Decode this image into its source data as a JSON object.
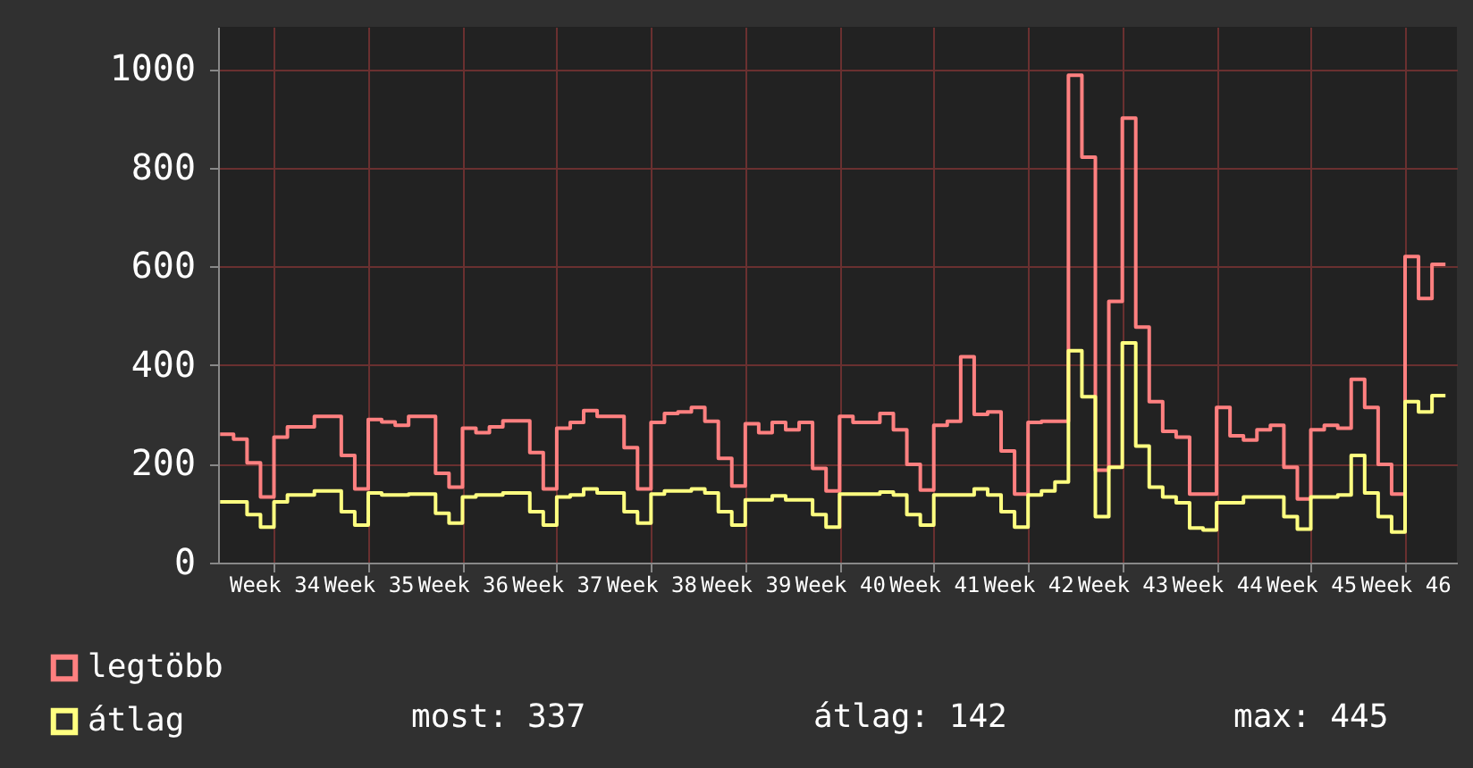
{
  "chart_data": {
    "type": "step",
    "marker": "none",
    "line_style": "solid",
    "grid": true,
    "legend": "bottom left",
    "categories": [
      null,
      null,
      null,
      null,
      "Week 34",
      null,
      null,
      null,
      null,
      null,
      null,
      "Week 35",
      null,
      null,
      null,
      null,
      null,
      null,
      "Week 36",
      null,
      null,
      null,
      null,
      null,
      null,
      "Week 37",
      null,
      null,
      null,
      null,
      null,
      null,
      "Week 38",
      null,
      null,
      null,
      null,
      null,
      null,
      "Week 39",
      null,
      null,
      null,
      null,
      null,
      null,
      "Week 40",
      null,
      null,
      null,
      null,
      null,
      null,
      "Week 41",
      null,
      null,
      null,
      null,
      null,
      null,
      "Week 42",
      null,
      null,
      null,
      null,
      null,
      null,
      "Week 43",
      null,
      null,
      null,
      null,
      null,
      null,
      "Week 44",
      null,
      null,
      null,
      null,
      null,
      null,
      "Week 45",
      null,
      null,
      null,
      null,
      null,
      null,
      "Week 46",
      null,
      null,
      null
    ],
    "series": [
      {
        "name": "legtöbb",
        "color": "#ff8080",
        "values": [
          260,
          250,
          202,
          133,
          254,
          275,
          275,
          296,
          296,
          217,
          149,
          290,
          285,
          278,
          296,
          296,
          181,
          153,
          272,
          263,
          275,
          287,
          287,
          223,
          149,
          272,
          284,
          308,
          296,
          296,
          233,
          149,
          284,
          302,
          305,
          314,
          286,
          211,
          155,
          281,
          263,
          284,
          269,
          284,
          191,
          145,
          296,
          284,
          284,
          302,
          269,
          199,
          147,
          278,
          286,
          417,
          300,
          305,
          226,
          139,
          284,
          286,
          286,
          987,
          821,
          187,
          529,
          900,
          477,
          326,
          266,
          254,
          139,
          139,
          314,
          257,
          248,
          269,
          278,
          193,
          129,
          269,
          278,
          272,
          371,
          314,
          199,
          139,
          620,
          535,
          604,
          604
        ]
      },
      {
        "name": "átlag",
        "color": "#ffff80",
        "values": [
          123,
          123,
          97,
          72,
          123,
          137,
          137,
          145,
          145,
          103,
          76,
          141,
          137,
          137,
          139,
          139,
          100,
          80,
          133,
          137,
          137,
          141,
          141,
          103,
          76,
          133,
          137,
          149,
          141,
          141,
          103,
          80,
          139,
          145,
          145,
          149,
          141,
          103,
          76,
          127,
          127,
          135,
          127,
          127,
          97,
          72,
          139,
          139,
          139,
          143,
          137,
          97,
          76,
          137,
          137,
          137,
          149,
          137,
          103,
          72,
          137,
          145,
          163,
          429,
          336,
          93,
          193,
          445,
          236,
          153,
          133,
          121,
          70,
          66,
          121,
          121,
          133,
          133,
          133,
          93,
          68,
          133,
          133,
          137,
          217,
          141,
          93,
          62,
          326,
          305,
          338,
          338
        ]
      }
    ],
    "ylim": [
      0,
      1085
    ],
    "yticks": [
      0,
      200,
      400,
      600,
      800,
      1000
    ],
    "annotations": [
      "most: 337",
      "átlag: 142",
      "max: 445"
    ]
  }
}
